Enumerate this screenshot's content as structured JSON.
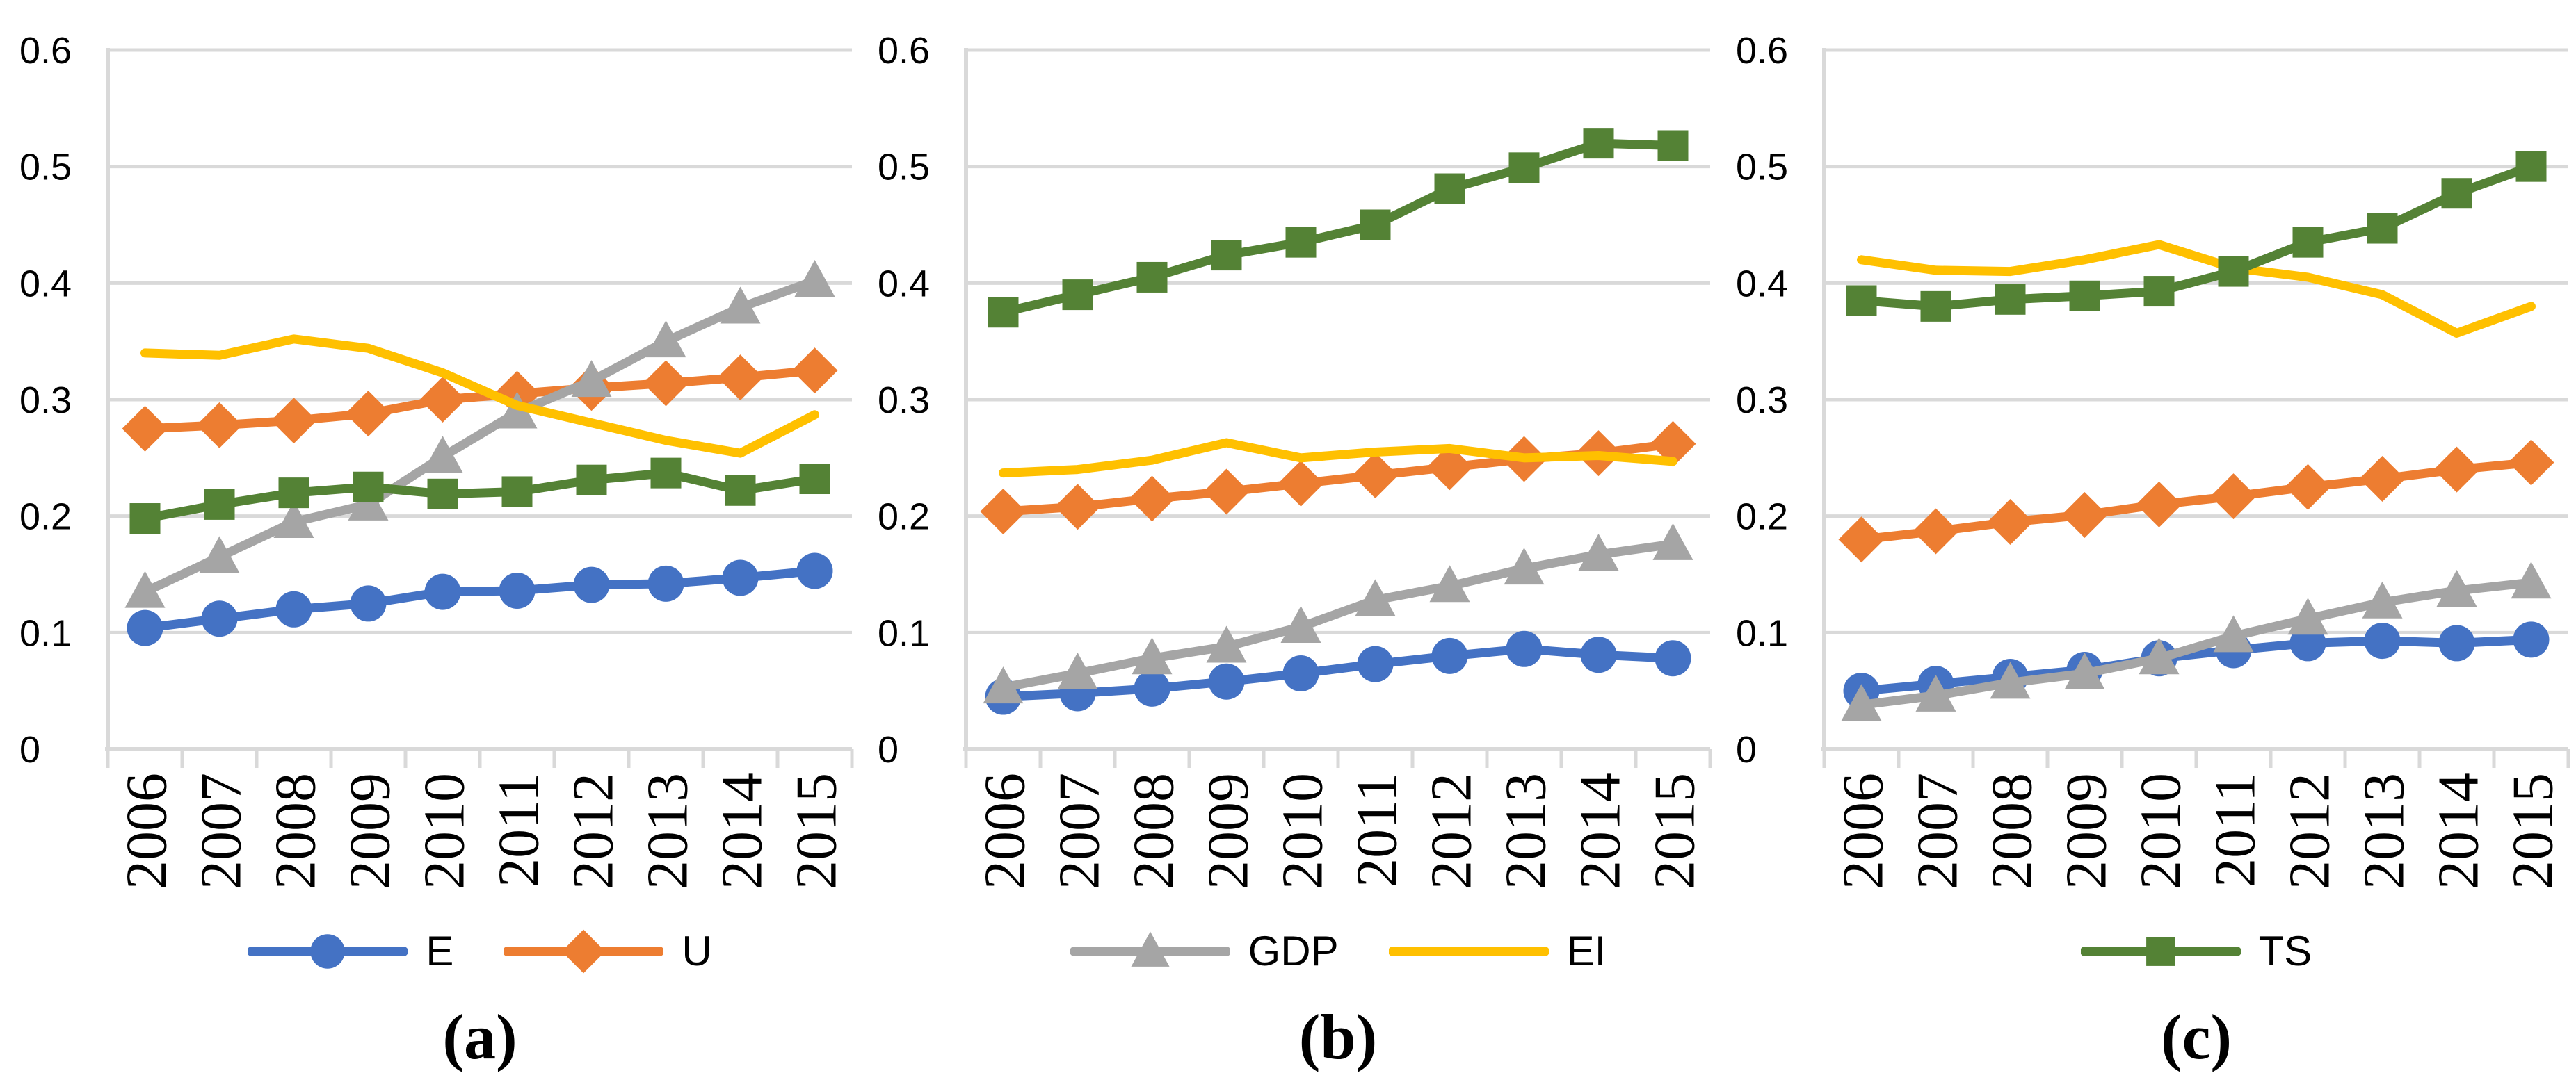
{
  "figure": {
    "y_axis_ticks": [
      "0.6",
      "0.5",
      "0.4",
      "0.3",
      "0.2",
      "0.1",
      "0"
    ],
    "x_axis_years": [
      "2006",
      "2007",
      "2008",
      "2009",
      "2010",
      "2011",
      "2012",
      "2013",
      "2014",
      "2015"
    ],
    "colors": {
      "axis_and_grid": "#D9D9D9",
      "E": "#4472C4",
      "U": "#ED7D31",
      "GDP": "#A5A5A5",
      "EI": "#FFC000",
      "TS": "#548235",
      "text": "#000000"
    }
  },
  "chart_data": [
    {
      "panel": "a",
      "caption": "(a)",
      "type": "line",
      "x": [
        "2006",
        "2007",
        "2008",
        "2009",
        "2010",
        "2011",
        "2012",
        "2013",
        "2014",
        "2015"
      ],
      "ylim": [
        0,
        0.6
      ],
      "ytick_step": 0.1,
      "grid": true,
      "legend_position": "bottom",
      "legend": [
        "E",
        "U"
      ],
      "series": [
        {
          "name": "E",
          "color": "#4472C4",
          "marker": "circle",
          "values": [
            0.104,
            0.112,
            0.12,
            0.125,
            0.135,
            0.136,
            0.141,
            0.142,
            0.147,
            0.153
          ]
        },
        {
          "name": "U",
          "color": "#ED7D31",
          "marker": "diamond",
          "values": [
            0.275,
            0.278,
            0.282,
            0.288,
            0.3,
            0.305,
            0.31,
            0.314,
            0.319,
            0.325
          ]
        },
        {
          "name": "GDP",
          "color": "#A5A5A5",
          "marker": "triangle",
          "values": [
            0.135,
            0.165,
            0.195,
            0.21,
            0.251,
            0.289,
            0.316,
            0.35,
            0.379,
            0.402
          ]
        },
        {
          "name": "EI",
          "color": "#FFC000",
          "marker": "none",
          "values": [
            0.34,
            0.338,
            0.352,
            0.344,
            0.323,
            0.295,
            0.28,
            0.265,
            0.254,
            0.287
          ]
        },
        {
          "name": "TS",
          "color": "#548235",
          "marker": "square",
          "values": [
            0.198,
            0.21,
            0.22,
            0.225,
            0.219,
            0.221,
            0.231,
            0.237,
            0.222,
            0.232
          ]
        }
      ]
    },
    {
      "panel": "b",
      "caption": "(b)",
      "type": "line",
      "x": [
        "2006",
        "2007",
        "2008",
        "2009",
        "2010",
        "2011",
        "2012",
        "2013",
        "2014",
        "2015"
      ],
      "ylim": [
        0,
        0.6
      ],
      "ytick_step": 0.1,
      "grid": true,
      "legend_position": "bottom",
      "legend": [
        "GDP",
        "EI"
      ],
      "series": [
        {
          "name": "E",
          "color": "#4472C4",
          "marker": "circle",
          "values": [
            0.045,
            0.048,
            0.052,
            0.058,
            0.065,
            0.073,
            0.08,
            0.086,
            0.081,
            0.078
          ]
        },
        {
          "name": "U",
          "color": "#ED7D31",
          "marker": "diamond",
          "values": [
            0.204,
            0.208,
            0.215,
            0.221,
            0.228,
            0.235,
            0.242,
            0.249,
            0.254,
            0.262
          ]
        },
        {
          "name": "GDP",
          "color": "#A5A5A5",
          "marker": "triangle",
          "values": [
            0.053,
            0.065,
            0.078,
            0.088,
            0.105,
            0.128,
            0.14,
            0.155,
            0.167,
            0.176
          ]
        },
        {
          "name": "EI",
          "color": "#FFC000",
          "marker": "none",
          "values": [
            0.237,
            0.24,
            0.248,
            0.263,
            0.25,
            0.255,
            0.258,
            0.25,
            0.252,
            0.247
          ]
        },
        {
          "name": "TS",
          "color": "#548235",
          "marker": "square",
          "values": [
            0.375,
            0.39,
            0.405,
            0.424,
            0.435,
            0.45,
            0.481,
            0.499,
            0.52,
            0.518
          ]
        }
      ]
    },
    {
      "panel": "c",
      "caption": "(c)",
      "type": "line",
      "x": [
        "2006",
        "2007",
        "2008",
        "2009",
        "2010",
        "2011",
        "2012",
        "2013",
        "2014",
        "2015"
      ],
      "ylim": [
        0,
        0.6
      ],
      "ytick_step": 0.1,
      "grid": true,
      "legend_position": "bottom",
      "legend": [
        "TS"
      ],
      "series": [
        {
          "name": "E",
          "color": "#4472C4",
          "marker": "circle",
          "values": [
            0.05,
            0.056,
            0.062,
            0.068,
            0.078,
            0.085,
            0.091,
            0.093,
            0.091,
            0.094
          ]
        },
        {
          "name": "U",
          "color": "#ED7D31",
          "marker": "diamond",
          "values": [
            0.18,
            0.187,
            0.195,
            0.201,
            0.21,
            0.217,
            0.225,
            0.232,
            0.24,
            0.246
          ]
        },
        {
          "name": "GDP",
          "color": "#A5A5A5",
          "marker": "triangle",
          "values": [
            0.038,
            0.046,
            0.057,
            0.065,
            0.078,
            0.097,
            0.112,
            0.126,
            0.136,
            0.143
          ]
        },
        {
          "name": "EI",
          "color": "#FFC000",
          "marker": "none",
          "values": [
            0.42,
            0.411,
            0.41,
            0.42,
            0.433,
            0.413,
            0.405,
            0.39,
            0.357,
            0.38
          ]
        },
        {
          "name": "TS",
          "color": "#548235",
          "marker": "square",
          "values": [
            0.385,
            0.38,
            0.386,
            0.389,
            0.393,
            0.41,
            0.435,
            0.447,
            0.477,
            0.5
          ]
        }
      ]
    }
  ]
}
